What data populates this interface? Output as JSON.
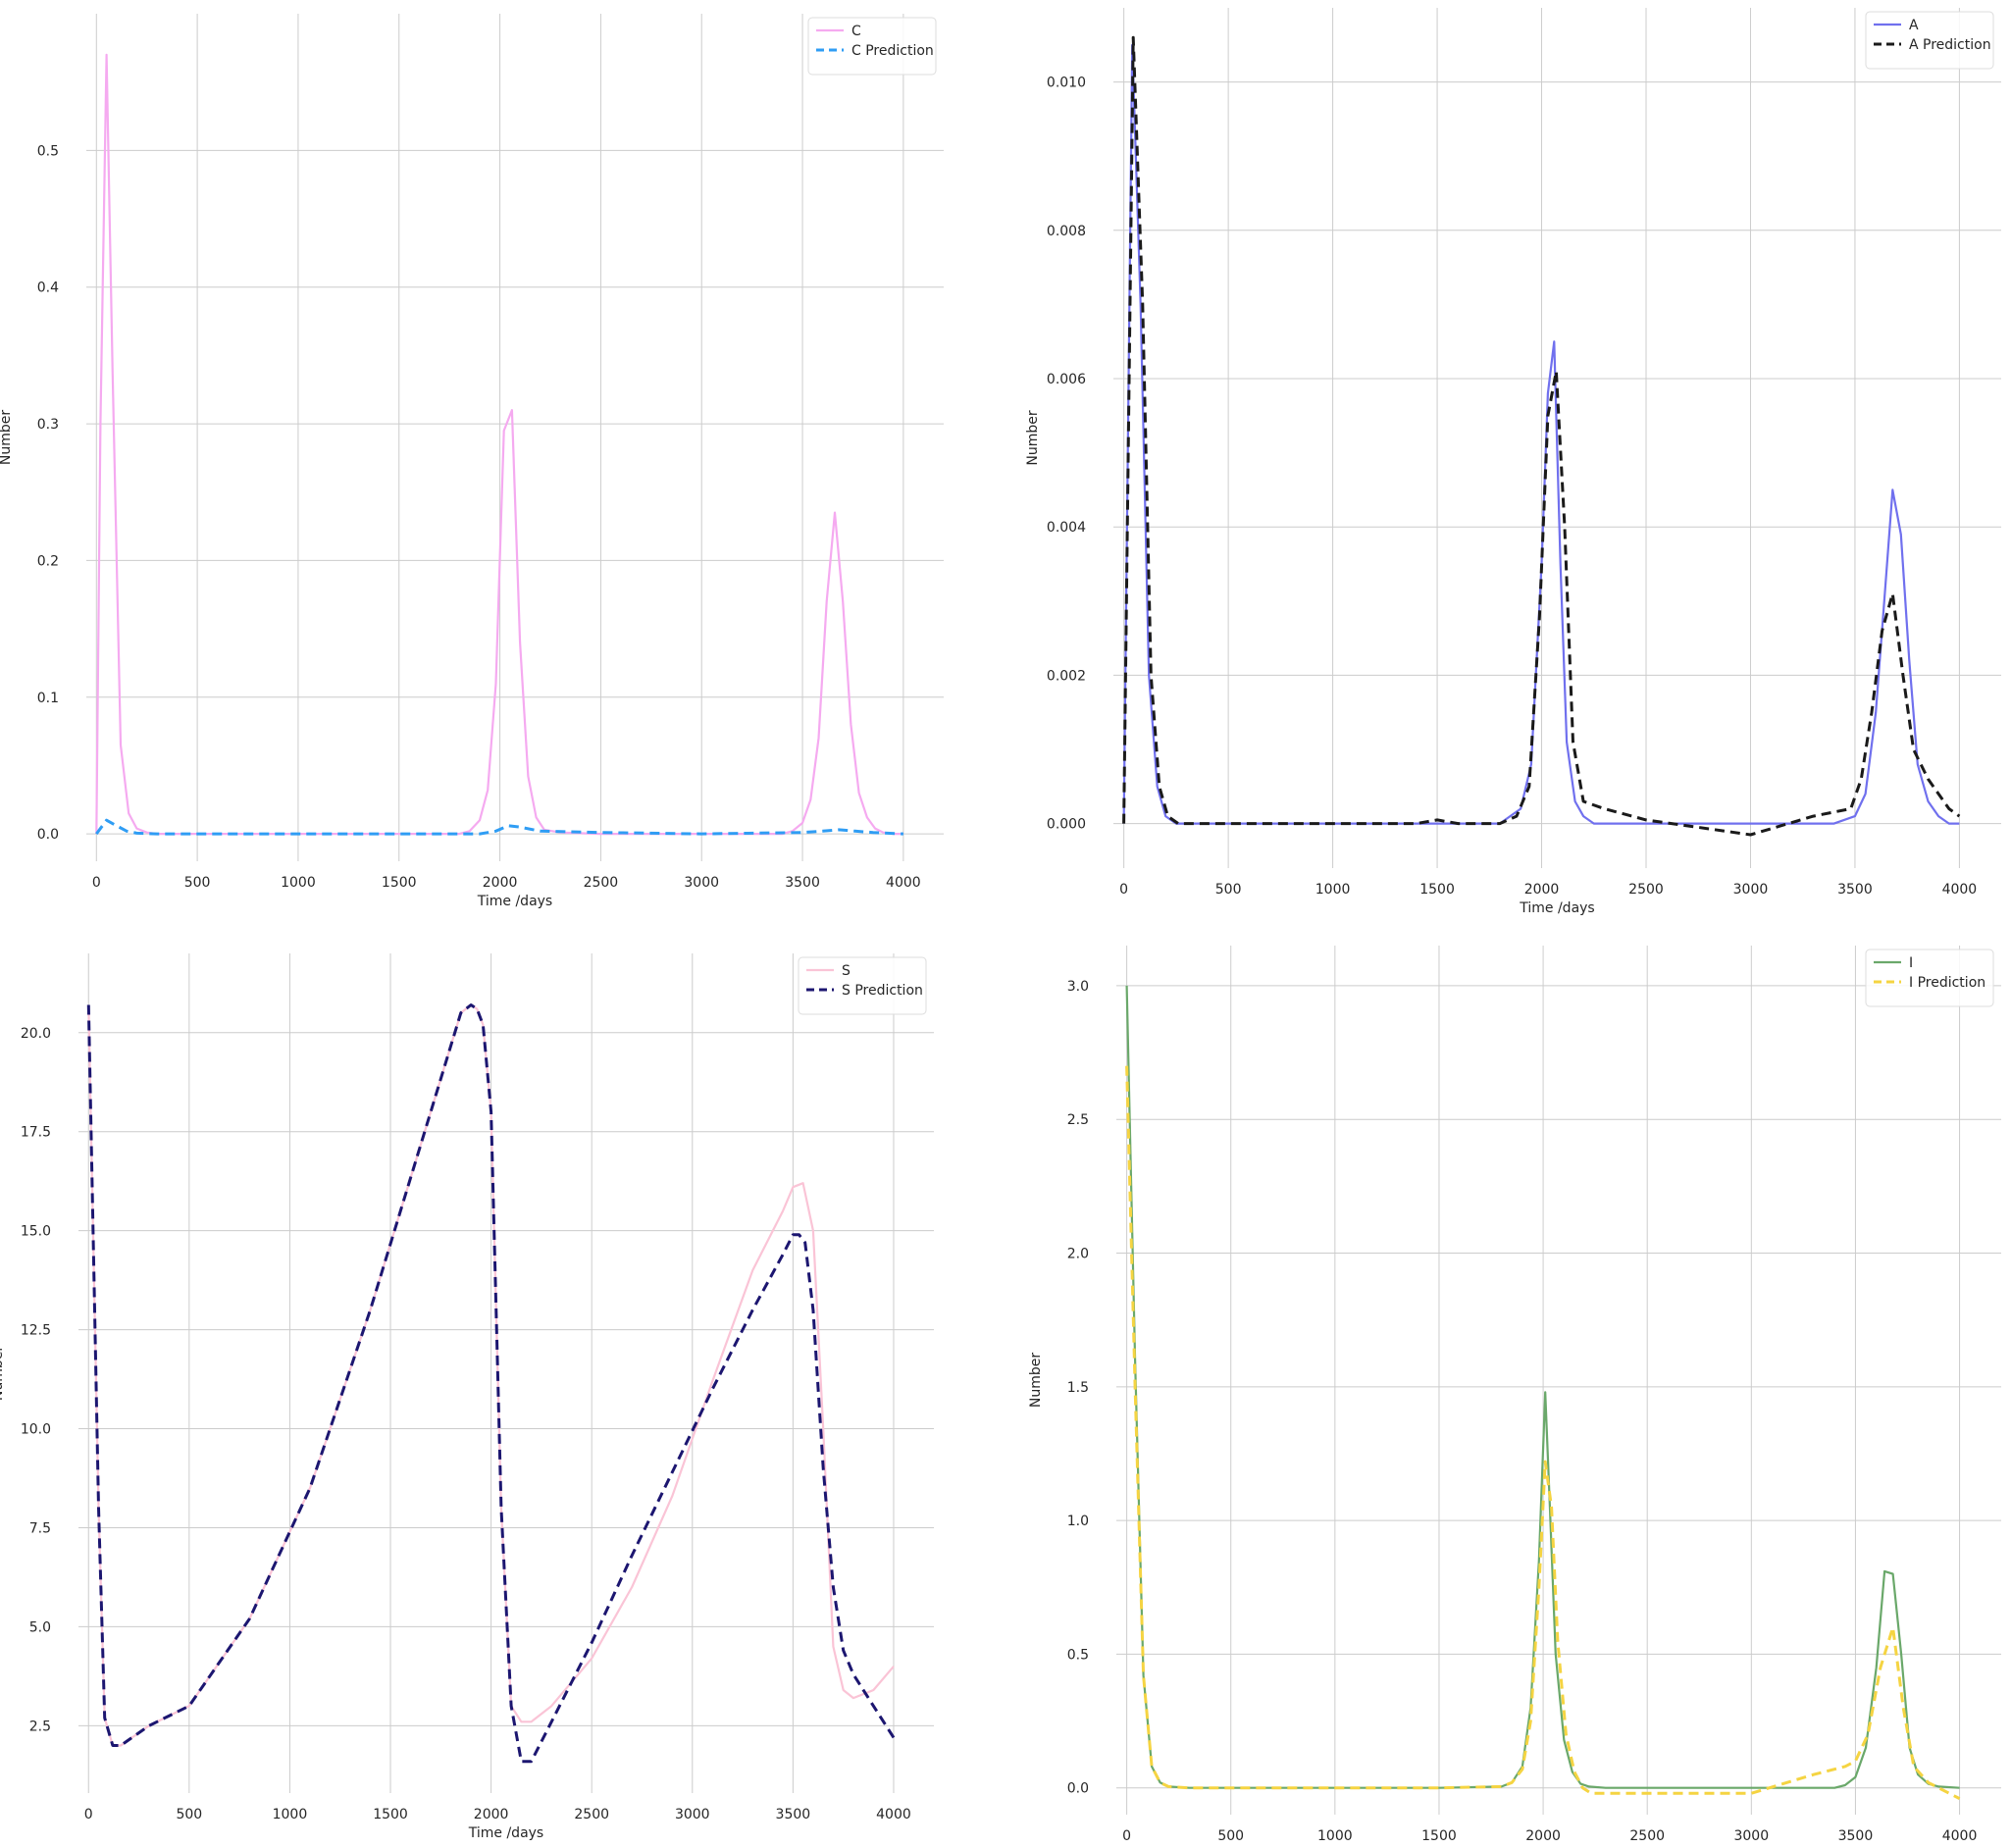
{
  "chart_data": [
    {
      "type": "line",
      "xlabel": "Time /days",
      "ylabel": "Number",
      "xlim": [
        -50,
        4200
      ],
      "ylim": [
        -0.02,
        0.6
      ],
      "xticks": [
        0,
        500,
        1000,
        1500,
        2000,
        2500,
        3000,
        3500,
        4000
      ],
      "yticks": [
        0.0,
        0.1,
        0.2,
        0.3,
        0.4,
        0.5
      ],
      "ytick_decimals": 1,
      "grid": true,
      "legend": "top-right",
      "series": [
        {
          "name": "C",
          "color": "#f5aaf0",
          "dashed": false,
          "x": [
            0,
            20,
            50,
            80,
            120,
            160,
            200,
            250,
            300,
            500,
            1000,
            1500,
            1800,
            1850,
            1900,
            1940,
            1980,
            2020,
            2060,
            2100,
            2140,
            2180,
            2220,
            2300,
            2500,
            3000,
            3400,
            3450,
            3500,
            3540,
            3580,
            3620,
            3660,
            3700,
            3740,
            3780,
            3820,
            3860,
            3900,
            3950,
            4000
          ],
          "y": [
            0,
            0.3,
            0.57,
            0.34,
            0.065,
            0.015,
            0.004,
            0.001,
            0,
            0,
            0,
            0,
            0,
            0.002,
            0.01,
            0.032,
            0.11,
            0.295,
            0.31,
            0.14,
            0.042,
            0.012,
            0.003,
            0.001,
            0,
            0,
            0,
            0.002,
            0.008,
            0.025,
            0.07,
            0.17,
            0.235,
            0.17,
            0.08,
            0.03,
            0.012,
            0.004,
            0.001,
            0,
            0
          ]
        },
        {
          "name": "C Prediction",
          "color": "#2f9df4",
          "dashed": true,
          "x": [
            0,
            50,
            100,
            150,
            200,
            300,
            500,
            1000,
            1500,
            1900,
            1980,
            2040,
            2100,
            2200,
            2500,
            3000,
            3500,
            3600,
            3680,
            3760,
            3850,
            4000
          ],
          "y": [
            0,
            0.01,
            0.006,
            0.002,
            0.0005,
            0,
            0,
            0,
            0,
            0,
            0.002,
            0.006,
            0.005,
            0.002,
            0.001,
            0,
            0.001,
            0.002,
            0.003,
            0.002,
            0.001,
            0
          ]
        }
      ]
    },
    {
      "type": "line",
      "xlabel": "Time /days",
      "ylabel": "Number",
      "xlim": [
        -50,
        4200
      ],
      "ylim": [
        -0.0006,
        0.011
      ],
      "xticks": [
        0,
        500,
        1000,
        1500,
        2000,
        2500,
        3000,
        3500,
        4000
      ],
      "yticks": [
        0.0,
        0.002,
        0.004,
        0.006,
        0.008,
        0.01
      ],
      "ytick_decimals": 3,
      "grid": true,
      "legend": "top-right",
      "series": [
        {
          "name": "A",
          "color": "#7070ee",
          "dashed": false,
          "x": [
            0,
            40,
            80,
            120,
            160,
            200,
            250,
            300,
            500,
            1000,
            1500,
            1800,
            1900,
            1950,
            2000,
            2030,
            2060,
            2090,
            2120,
            2160,
            2200,
            2250,
            2300,
            2500,
            3000,
            3400,
            3500,
            3550,
            3600,
            3640,
            3680,
            3720,
            3760,
            3800,
            3850,
            3900,
            3950,
            4000
          ],
          "y": [
            0,
            0.0105,
            0.007,
            0.002,
            0.0005,
            0.0001,
            0,
            0,
            0,
            0,
            0,
            0,
            0.0002,
            0.0008,
            0.0035,
            0.0058,
            0.0065,
            0.0035,
            0.0011,
            0.0003,
            0.0001,
            0,
            0,
            0,
            0,
            0,
            0.0001,
            0.0004,
            0.0015,
            0.003,
            0.0045,
            0.0039,
            0.0022,
            0.0008,
            0.0003,
            0.0001,
            0,
            0
          ]
        },
        {
          "name": "A Prediction",
          "color": "#1a1a1a",
          "dashed": true,
          "x": [
            0,
            45,
            90,
            130,
            170,
            210,
            260,
            320,
            500,
            1000,
            1200,
            1400,
            1500,
            1600,
            1800,
            1880,
            1940,
            1990,
            2030,
            2070,
            2110,
            2150,
            2200,
            2300,
            2500,
            3000,
            3300,
            3480,
            3530,
            3580,
            3630,
            3680,
            3730,
            3780,
            3850,
            3950,
            4000
          ],
          "y": [
            0,
            0.0106,
            0.007,
            0.002,
            0.0005,
            0.0001,
            0,
            0,
            0,
            0,
            0,
            0,
            5e-05,
            0,
            0,
            0.0001,
            0.0005,
            0.0028,
            0.0055,
            0.0061,
            0.004,
            0.0011,
            0.0003,
            0.0002,
            5e-05,
            -0.00015,
            0.0001,
            0.0002,
            0.0006,
            0.0015,
            0.0026,
            0.0031,
            0.002,
            0.001,
            0.0006,
            0.0002,
            0.0001
          ]
        }
      ]
    },
    {
      "type": "line",
      "xlabel": "Time /days",
      "ylabel": "Number",
      "xlim": [
        -50,
        4200
      ],
      "ylim": [
        0.8,
        22
      ],
      "xticks": [
        0,
        500,
        1000,
        1500,
        2000,
        2500,
        3000,
        3500,
        4000
      ],
      "yticks": [
        2.5,
        5.0,
        7.5,
        10.0,
        12.5,
        15.0,
        17.5,
        20.0
      ],
      "ytick_decimals": 1,
      "grid": true,
      "legend": "top-right",
      "series": [
        {
          "name": "S",
          "color": "#fac4d6",
          "dashed": false,
          "x": [
            0,
            50,
            80,
            120,
            160,
            300,
            500,
            800,
            1100,
            1400,
            1700,
            1850,
            1900,
            1930,
            1960,
            2000,
            2050,
            2100,
            2150,
            2200,
            2300,
            2500,
            2700,
            2900,
            3100,
            3300,
            3450,
            3500,
            3550,
            3600,
            3650,
            3700,
            3750,
            3800,
            3900,
            4000
          ],
          "y": [
            20.7,
            8,
            2.7,
            2,
            2,
            2.5,
            3,
            5.2,
            8.5,
            13,
            18,
            20.5,
            20.7,
            20.6,
            20.2,
            18,
            8,
            3,
            2.6,
            2.6,
            3,
            4.2,
            6,
            8.3,
            11.2,
            14,
            15.5,
            16.1,
            16.2,
            15,
            10,
            4.5,
            3.4,
            3.2,
            3.4,
            4
          ]
        },
        {
          "name": "S Prediction",
          "color": "#1c1670",
          "dashed": true,
          "x": [
            0,
            50,
            80,
            120,
            160,
            300,
            500,
            800,
            1100,
            1400,
            1700,
            1850,
            1900,
            1930,
            1960,
            2000,
            2050,
            2100,
            2150,
            2200,
            2300,
            2500,
            2700,
            2900,
            3100,
            3300,
            3450,
            3500,
            3530,
            3560,
            3600,
            3650,
            3700,
            3750,
            3800,
            3900,
            4000
          ],
          "y": [
            20.7,
            8,
            2.7,
            2,
            2,
            2.5,
            3,
            5.2,
            8.5,
            13,
            18,
            20.5,
            20.7,
            20.6,
            20.2,
            18,
            8,
            3,
            1.6,
            1.6,
            2.6,
            4.6,
            6.8,
            8.9,
            11,
            13,
            14.4,
            14.9,
            14.9,
            14.7,
            13,
            9,
            6,
            4.4,
            3.8,
            3,
            2.2
          ]
        }
      ]
    },
    {
      "type": "line",
      "xlabel": "Time /days",
      "ylabel": "Number",
      "xlim": [
        -50,
        4200
      ],
      "ylim": [
        -0.1,
        3.15
      ],
      "xticks": [
        0,
        500,
        1000,
        1500,
        2000,
        2500,
        3000,
        3500,
        4000
      ],
      "yticks": [
        0.0,
        0.5,
        1.0,
        1.5,
        2.0,
        2.5,
        3.0
      ],
      "ytick_decimals": 1,
      "grid": true,
      "legend": "top-right",
      "series": [
        {
          "name": "I",
          "color": "#6aa86a",
          "dashed": false,
          "x": [
            0,
            40,
            80,
            120,
            160,
            200,
            300,
            500,
            1000,
            1500,
            1800,
            1850,
            1900,
            1940,
            1980,
            2010,
            2030,
            2060,
            2100,
            2140,
            2180,
            2220,
            2300,
            2500,
            3000,
            3400,
            3450,
            3500,
            3550,
            3600,
            3640,
            3680,
            3720,
            3760,
            3800,
            3850,
            3900,
            4000
          ],
          "y": [
            3,
            1.6,
            0.42,
            0.08,
            0.02,
            0.005,
            0,
            0,
            0,
            0,
            0.005,
            0.02,
            0.08,
            0.3,
            0.85,
            1.48,
            1.1,
            0.5,
            0.18,
            0.06,
            0.015,
            0.005,
            0,
            0,
            0,
            0,
            0.01,
            0.04,
            0.15,
            0.45,
            0.81,
            0.8,
            0.5,
            0.15,
            0.05,
            0.015,
            0.005,
            0
          ]
        },
        {
          "name": "I Prediction",
          "color": "#f5d442",
          "dashed": true,
          "x": [
            0,
            40,
            80,
            120,
            160,
            200,
            300,
            500,
            1000,
            1500,
            1800,
            1850,
            1900,
            1940,
            1980,
            2010,
            2040,
            2070,
            2110,
            2150,
            2190,
            2230,
            2300,
            2500,
            3000,
            3300,
            3450,
            3500,
            3560,
            3620,
            3680,
            3730,
            3780,
            3850,
            3950,
            4000
          ],
          "y": [
            2.7,
            1.5,
            0.42,
            0.08,
            0.02,
            0.005,
            0,
            0,
            0,
            0,
            0.005,
            0.02,
            0.07,
            0.25,
            0.75,
            1.22,
            1.05,
            0.55,
            0.2,
            0.06,
            0,
            -0.02,
            -0.02,
            -0.02,
            -0.02,
            0.05,
            0.08,
            0.1,
            0.2,
            0.45,
            0.6,
            0.3,
            0.08,
            0.02,
            -0.02,
            -0.04
          ]
        }
      ]
    }
  ]
}
